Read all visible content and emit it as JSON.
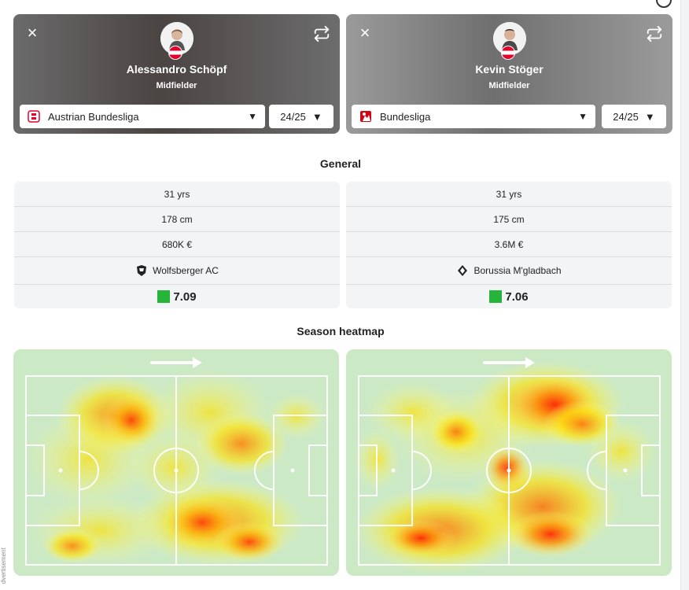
{
  "players": [
    {
      "name": "Alessandro Schöpf",
      "position": "Midfielder",
      "league": "Austrian Bundesliga",
      "season": "24/25",
      "general": {
        "age": "31 yrs",
        "height": "178 cm",
        "value": "680K €",
        "club": "Wolfsberger AC",
        "rating": "7.09"
      }
    },
    {
      "name": "Kevin Stöger",
      "position": "Midfielder",
      "league": "Bundesliga",
      "season": "24/25",
      "general": {
        "age": "31 yrs",
        "height": "175 cm",
        "value": "3.6M €",
        "club": "Borussia M'gladbach",
        "rating": "7.06"
      }
    }
  ],
  "sections": {
    "general": "General",
    "heatmap": "Season heatmap"
  },
  "side": {
    "advertisement": "dvertisement"
  },
  "colors": {
    "rating_green": "#27b43a",
    "pitch": "#cce9c6",
    "accent_red": "#e4002b"
  }
}
